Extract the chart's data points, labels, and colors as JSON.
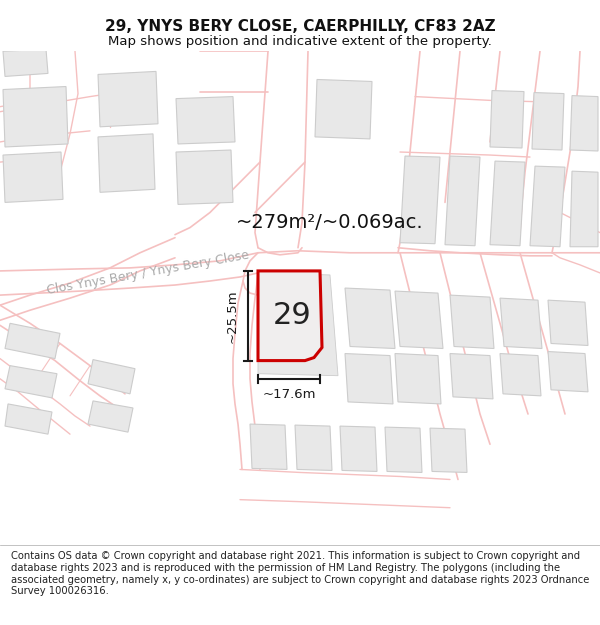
{
  "title_line1": "29, YNYS BERY CLOSE, CAERPHILLY, CF83 2AZ",
  "title_line2": "Map shows position and indicative extent of the property.",
  "footer_text": "Contains OS data © Crown copyright and database right 2021. This information is subject to Crown copyright and database rights 2023 and is reproduced with the permission of HM Land Registry. The polygons (including the associated geometry, namely x, y co-ordinates) are subject to Crown copyright and database rights 2023 Ordnance Survey 100026316.",
  "area_label": "~279m²/~0.069ac.",
  "street_label": "Clos Ynys Bery / Ynys Bery Close",
  "plot_number": "29",
  "width_label": "~17.6m",
  "height_label": "~25.5m",
  "map_bg": "#ffffff",
  "road_line_color": "#f5c0c0",
  "building_fill": "#e8e8e8",
  "building_edge": "#cccccc",
  "plot_fill": "#f0eeee",
  "plot_edge": "#cc0000",
  "plot_edge_width": 2.2,
  "dim_color": "#1a1a1a",
  "title_fontsize": 11,
  "footer_fontsize": 7.2,
  "area_fontsize": 14,
  "street_fontsize": 9,
  "plot_num_fontsize": 22
}
